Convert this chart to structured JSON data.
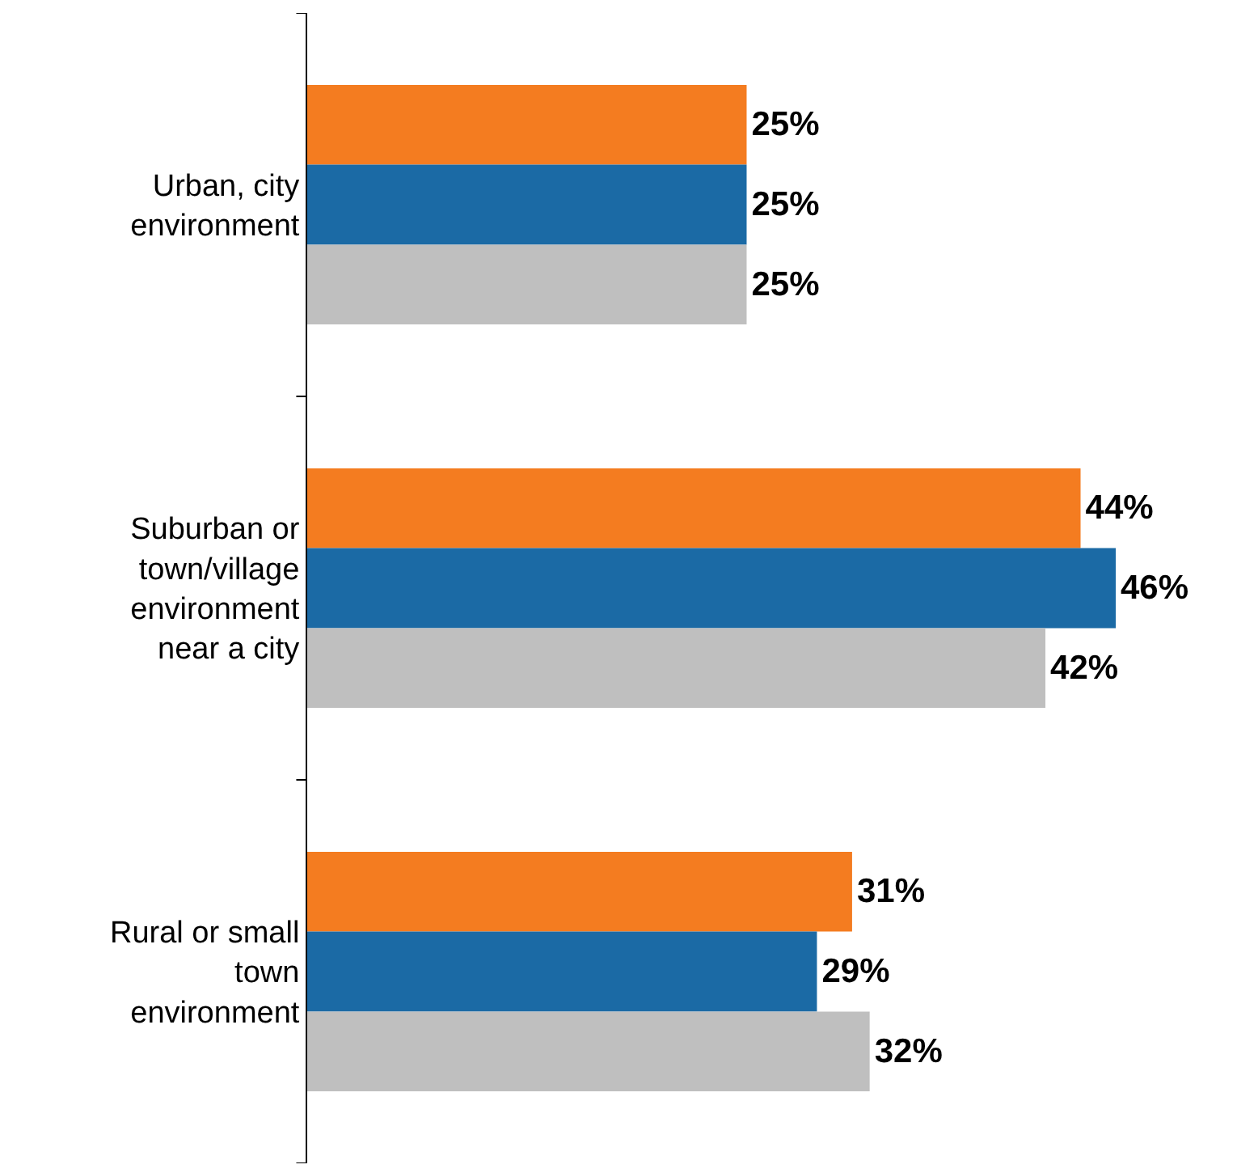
{
  "chart_data": {
    "type": "bar",
    "orientation": "horizontal",
    "categories": [
      "Urban, city environment",
      "Suburban or town/village environment near a city",
      "Rural or small town environment"
    ],
    "series": [
      {
        "color": "#f47c20",
        "values": [
          25,
          44,
          31
        ],
        "value_labels": [
          "25%",
          "44%",
          "31%"
        ]
      },
      {
        "color": "#1b6aa5",
        "values": [
          25,
          46,
          29
        ],
        "value_labels": [
          "25%",
          "46%",
          "29%"
        ]
      },
      {
        "color": "#bfbfbf",
        "values": [
          25,
          42,
          32
        ],
        "value_labels": [
          "25%",
          "42%",
          "32%"
        ]
      }
    ]
  }
}
